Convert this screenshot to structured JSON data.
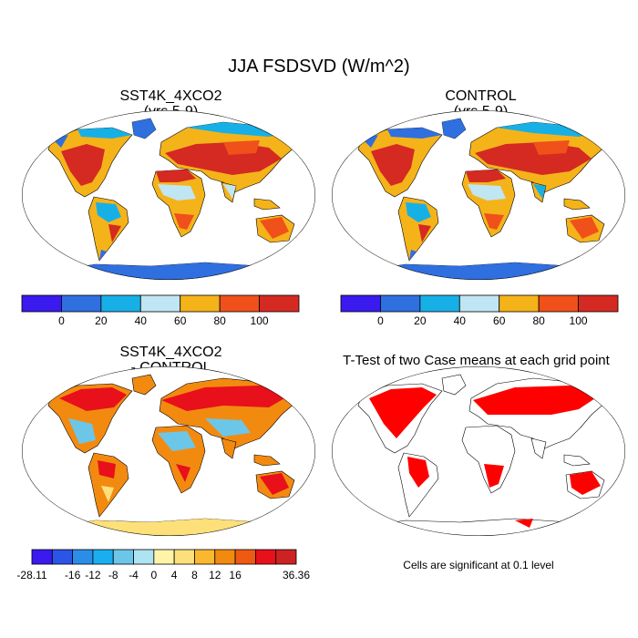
{
  "title": "JJA FSDSVD (W/m^2)",
  "panels": [
    {
      "title": "SST4K_4XCO2",
      "subtitle": "(yrs 5-9)"
    },
    {
      "title": "CONTROL",
      "subtitle": "(yrs 5-9)"
    },
    {
      "title": "SST4K_4XCO2",
      "subtitle": "- CONTROL"
    },
    {
      "title": "T-Test of two Case means at each grid point",
      "subtitle": ""
    }
  ],
  "colorbar_abs": {
    "colors": [
      "#3a1aee",
      "#2f6fe0",
      "#17b0e6",
      "#bfe6f2",
      "#f5b31a",
      "#f0501a",
      "#d42a22"
    ],
    "labels": [
      "0",
      "20",
      "40",
      "60",
      "80",
      "100"
    ]
  },
  "colorbar_diff": {
    "colors": [
      "#3a1aee",
      "#2a55e6",
      "#2c8de8",
      "#1aaef0",
      "#6cc6e8",
      "#aee3f2",
      "#fff4a8",
      "#fde07a",
      "#f9b830",
      "#f38a10",
      "#ef5a12",
      "#e8101a",
      "#cc2222"
    ],
    "labels": [
      "-28.11",
      "-16",
      "-12",
      "-8",
      "-4",
      "0",
      "4",
      "8",
      "12",
      "16",
      "36.36"
    ]
  },
  "significance_note": "Cells are significant at 0.1 level",
  "map_colors": {
    "land_hot": "#d42a22",
    "land_orange": "#f0501a",
    "land_yellow": "#f5b31a",
    "land_light": "#bfe6f2",
    "land_cyan": "#17b0e6",
    "land_blue": "#2f6fe0",
    "diff_red": "#e8101a",
    "diff_orange": "#f38a10",
    "diff_yellow": "#fde07a",
    "diff_blue": "#6cc6e8",
    "sig_red": "#ff0000"
  }
}
